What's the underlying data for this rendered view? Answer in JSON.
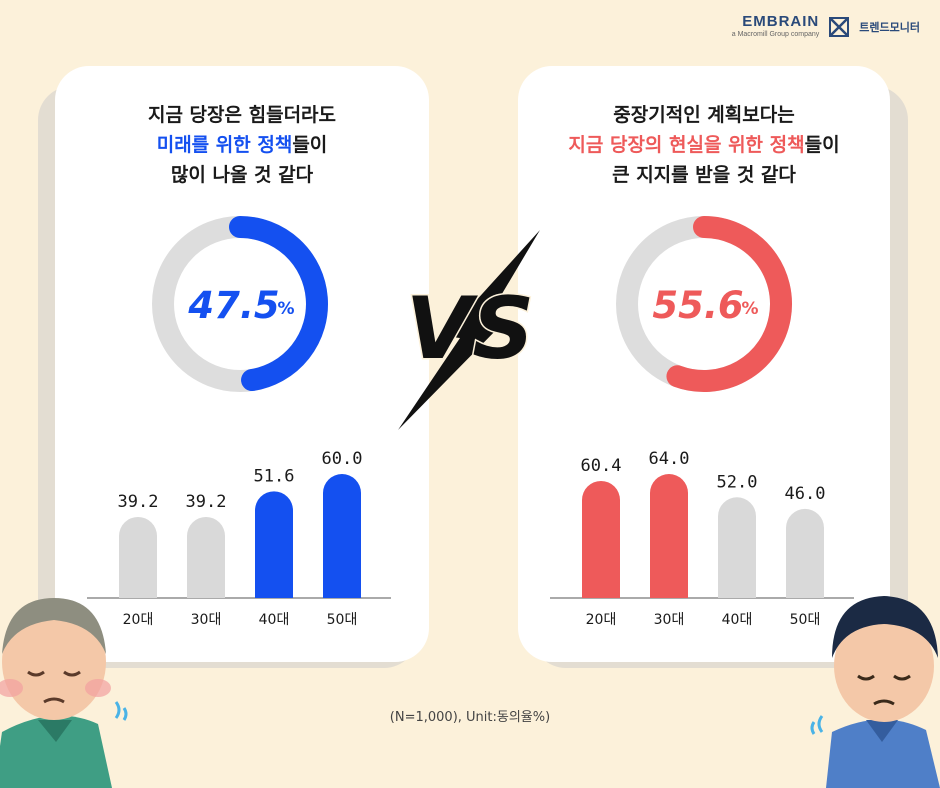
{
  "brand": {
    "name": "EMBRAIN",
    "sub": "a Macromill Group company",
    "title": "트렌드모니터"
  },
  "colors": {
    "blue": "#1450f0",
    "red": "#ee5a5a",
    "bar_gray": "#d9d9d9",
    "track_gray": "#dddddd"
  },
  "left": {
    "headline": {
      "line1": "지금 당장은 힘들더라도",
      "line2_hl": "미래를 위한 정책",
      "line2_rest": "들이",
      "line3": "많이 나올 것 같다"
    },
    "donut_value": "47.5",
    "donut_unit": "%"
  },
  "right": {
    "headline": {
      "line1": "중장기적인 계획보다는",
      "line2_hl": "지금 당장의 현실을 위한 정책",
      "line2_rest": "들이",
      "line3": "큰 지지를 받을 것 같다"
    },
    "donut_value": "55.6",
    "donut_unit": "%"
  },
  "footnote": "(N=1,000), Unit:동의율%)",
  "chart_data": [
    {
      "type": "pie",
      "values": [
        47.5,
        52.5
      ],
      "highlight_color": "#1450f0"
    },
    {
      "type": "bar",
      "categories": [
        "20대",
        "30대",
        "40대",
        "50대"
      ],
      "values": [
        39.2,
        39.2,
        51.6,
        60.0
      ],
      "value_labels": [
        "39.2",
        "39.2",
        "51.6",
        "60.0"
      ],
      "highlight": [
        false,
        false,
        true,
        true
      ],
      "highlight_color": "#1450f0",
      "ylim": [
        0,
        60
      ],
      "grid": false
    },
    {
      "type": "pie",
      "values": [
        55.6,
        44.4
      ],
      "highlight_color": "#ee5a5a"
    },
    {
      "type": "bar",
      "categories": [
        "20대",
        "30대",
        "40대",
        "50대"
      ],
      "values": [
        60.4,
        64.0,
        52.0,
        46.0
      ],
      "value_labels": [
        "60.4",
        "64.0",
        "52.0",
        "46.0"
      ],
      "highlight": [
        true,
        true,
        false,
        false
      ],
      "highlight_color": "#ee5a5a",
      "ylim": [
        0,
        64
      ],
      "grid": false
    }
  ]
}
